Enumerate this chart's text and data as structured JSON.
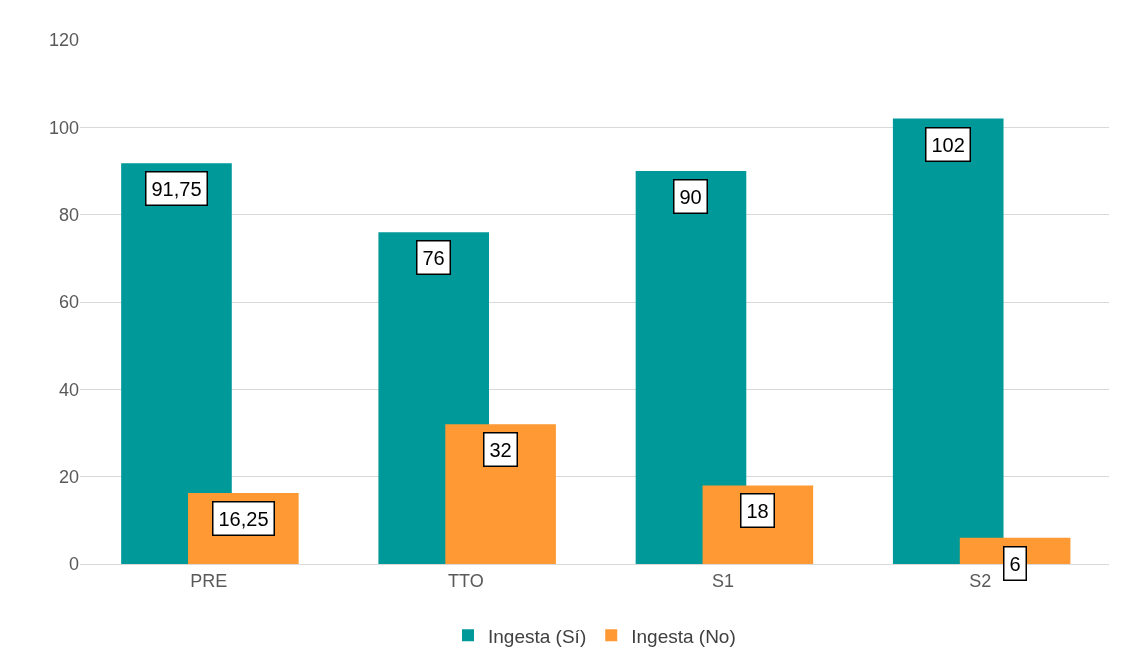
{
  "chart_data": {
    "type": "bar",
    "categories": [
      "PRE",
      "TTO",
      "S1",
      "S2"
    ],
    "series": [
      {
        "name": "Ingesta (Sí)",
        "color": "#009999",
        "values": [
          91.75,
          76,
          90,
          102
        ],
        "value_labels": [
          "91,75",
          "76",
          "90",
          "102"
        ]
      },
      {
        "name": "Ingesta (No)",
        "color": "#ff9933",
        "values": [
          16.25,
          32,
          18,
          6
        ],
        "value_labels": [
          "16,25",
          "32",
          "18",
          "6"
        ]
      }
    ],
    "ylim": [
      0,
      120
    ],
    "yticks": [
      0,
      20,
      40,
      60,
      80,
      100,
      120
    ],
    "grid": "y",
    "legend": "bottom"
  }
}
